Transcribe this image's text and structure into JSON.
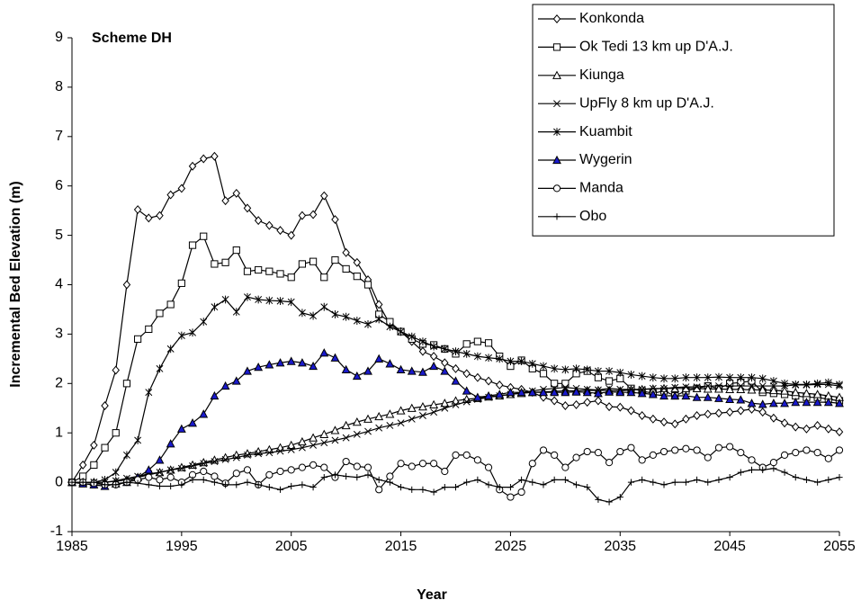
{
  "chart_data": {
    "type": "line",
    "annotation": "Scheme DH",
    "xlabel": "Year",
    "ylabel": "Incremental Bed Elevation (m)",
    "xlim": [
      1985,
      2055
    ],
    "xticks": [
      1985,
      1995,
      2005,
      2015,
      2025,
      2035,
      2045,
      2055
    ],
    "ylim": [
      -1,
      9
    ],
    "yticks": [
      -1,
      0,
      1,
      2,
      3,
      4,
      5,
      6,
      7,
      8,
      9
    ],
    "grid": false,
    "legend": "upper right",
    "x": [
      1985,
      1986,
      1987,
      1988,
      1989,
      1990,
      1991,
      1992,
      1993,
      1994,
      1995,
      1996,
      1997,
      1998,
      1999,
      2000,
      2001,
      2002,
      2003,
      2004,
      2005,
      2006,
      2007,
      2008,
      2009,
      2010,
      2011,
      2012,
      2013,
      2014,
      2015,
      2016,
      2017,
      2018,
      2019,
      2020,
      2021,
      2022,
      2023,
      2024,
      2025,
      2026,
      2027,
      2028,
      2029,
      2030,
      2031,
      2032,
      2033,
      2034,
      2035,
      2036,
      2037,
      2038,
      2039,
      2040,
      2041,
      2042,
      2043,
      2044,
      2045,
      2046,
      2047,
      2048,
      2049,
      2050,
      2051,
      2052,
      2053,
      2054,
      2055
    ],
    "series": [
      {
        "name": "Konkonda",
        "color": "#000000",
        "marker": "diamond",
        "marker_fill": "#ffffff",
        "values": [
          0,
          0.35,
          0.75,
          1.55,
          2.27,
          4.0,
          5.52,
          5.35,
          5.4,
          5.82,
          5.95,
          6.4,
          6.55,
          6.6,
          5.7,
          5.85,
          5.55,
          5.3,
          5.2,
          5.1,
          5.0,
          5.4,
          5.42,
          5.8,
          5.32,
          4.65,
          4.45,
          4.1,
          3.6,
          3.2,
          3.05,
          2.85,
          2.65,
          2.55,
          2.42,
          2.3,
          2.2,
          2.12,
          2.05,
          1.97,
          1.92,
          1.88,
          1.82,
          1.72,
          1.65,
          1.55,
          1.57,
          1.62,
          1.65,
          1.53,
          1.52,
          1.45,
          1.35,
          1.28,
          1.22,
          1.18,
          1.28,
          1.35,
          1.38,
          1.4,
          1.42,
          1.45,
          1.48,
          1.42,
          1.3,
          1.2,
          1.12,
          1.08,
          1.15,
          1.08,
          1.02
        ]
      },
      {
        "name": "Ok Tedi 13 km up D'A.J.",
        "color": "#000000",
        "marker": "square",
        "marker_fill": "#ffffff",
        "values": [
          0,
          0.12,
          0.35,
          0.7,
          1.0,
          2.0,
          2.9,
          3.1,
          3.42,
          3.6,
          4.03,
          4.8,
          4.98,
          4.42,
          4.45,
          4.7,
          4.27,
          4.3,
          4.27,
          4.22,
          4.15,
          4.42,
          4.47,
          4.15,
          4.5,
          4.32,
          4.17,
          4.0,
          3.4,
          3.25,
          3.05,
          2.9,
          2.8,
          2.78,
          2.7,
          2.6,
          2.8,
          2.85,
          2.82,
          2.55,
          2.35,
          2.47,
          2.3,
          2.2,
          2.0,
          2.0,
          2.2,
          2.25,
          2.12,
          2.05,
          2.1,
          1.9,
          1.85,
          1.8,
          1.85,
          1.75,
          1.85,
          1.9,
          1.95,
          1.9,
          2.0,
          2.02,
          2.05,
          1.82,
          1.8,
          1.78,
          1.75,
          1.72,
          1.72,
          1.68,
          1.65
        ]
      },
      {
        "name": "Kiunga",
        "color": "#000000",
        "marker": "triangle",
        "marker_fill": "#ffffff",
        "values": [
          0,
          0,
          0,
          0,
          0.02,
          0.05,
          0.1,
          0.15,
          0.2,
          0.25,
          0.3,
          0.35,
          0.4,
          0.45,
          0.5,
          0.55,
          0.58,
          0.62,
          0.66,
          0.7,
          0.75,
          0.82,
          0.9,
          0.97,
          1.05,
          1.15,
          1.22,
          1.28,
          1.33,
          1.38,
          1.45,
          1.5,
          1.53,
          1.57,
          1.6,
          1.65,
          1.68,
          1.7,
          1.73,
          1.75,
          1.78,
          1.8,
          1.82,
          1.83,
          1.84,
          1.85,
          1.85,
          1.86,
          1.86,
          1.86,
          1.85,
          1.87,
          1.88,
          1.89,
          1.9,
          1.9,
          1.9,
          1.9,
          1.89,
          1.89,
          1.88,
          1.88,
          1.87,
          1.87,
          1.86,
          1.85,
          1.82,
          1.8,
          1.78,
          1.75,
          1.72
        ]
      },
      {
        "name": "UpFly 8 km up D'A.J.",
        "color": "#000000",
        "marker": "x",
        "marker_fill": "#ffffff",
        "values": [
          0,
          0,
          0,
          0,
          0.03,
          0.08,
          0.12,
          0.17,
          0.2,
          0.25,
          0.28,
          0.33,
          0.38,
          0.42,
          0.46,
          0.5,
          0.55,
          0.58,
          0.6,
          0.63,
          0.66,
          0.7,
          0.75,
          0.8,
          0.85,
          0.9,
          0.97,
          1.03,
          1.1,
          1.15,
          1.2,
          1.28,
          1.35,
          1.42,
          1.5,
          1.57,
          1.63,
          1.68,
          1.72,
          1.75,
          1.78,
          1.82,
          1.85,
          1.88,
          1.9,
          1.92,
          1.9,
          1.88,
          1.87,
          1.9,
          1.88,
          1.88,
          1.88,
          1.9,
          1.9,
          1.92,
          1.93,
          1.93,
          1.95,
          1.95,
          1.95,
          1.95,
          1.95,
          1.95,
          1.95,
          1.95,
          1.97,
          1.97,
          1.98,
          1.98,
          1.95
        ]
      },
      {
        "name": "Kuambit",
        "color": "#000000",
        "marker": "asterisk",
        "marker_fill": "#ffffff",
        "values": [
          0,
          0,
          0,
          0.05,
          0.2,
          0.55,
          0.85,
          1.82,
          2.3,
          2.7,
          2.97,
          3.03,
          3.25,
          3.55,
          3.7,
          3.45,
          3.75,
          3.7,
          3.68,
          3.67,
          3.65,
          3.43,
          3.37,
          3.55,
          3.4,
          3.35,
          3.27,
          3.2,
          3.3,
          3.15,
          3.05,
          2.95,
          2.85,
          2.75,
          2.7,
          2.65,
          2.6,
          2.55,
          2.52,
          2.5,
          2.45,
          2.45,
          2.4,
          2.35,
          2.3,
          2.28,
          2.3,
          2.28,
          2.25,
          2.25,
          2.22,
          2.18,
          2.15,
          2.12,
          2.1,
          2.1,
          2.12,
          2.12,
          2.12,
          2.13,
          2.12,
          2.12,
          2.12,
          2.1,
          2.05,
          2.0,
          1.98,
          1.98,
          2.0,
          2.02,
          1.98
        ]
      },
      {
        "name": "Wygerin",
        "color": "#000000",
        "marker": "triangle",
        "marker_fill": "#1a1acc",
        "values": [
          0,
          -0.03,
          -0.05,
          -0.08,
          -0.03,
          0.0,
          0.1,
          0.25,
          0.45,
          0.78,
          1.08,
          1.2,
          1.38,
          1.75,
          1.95,
          2.05,
          2.25,
          2.33,
          2.38,
          2.42,
          2.45,
          2.42,
          2.35,
          2.62,
          2.52,
          2.28,
          2.15,
          2.25,
          2.5,
          2.4,
          2.28,
          2.25,
          2.23,
          2.35,
          2.25,
          2.05,
          1.85,
          1.72,
          1.75,
          1.78,
          1.82,
          1.82,
          1.82,
          1.82,
          1.82,
          1.82,
          1.83,
          1.82,
          1.8,
          1.83,
          1.82,
          1.82,
          1.8,
          1.78,
          1.75,
          1.75,
          1.75,
          1.72,
          1.72,
          1.7,
          1.68,
          1.67,
          1.6,
          1.58,
          1.6,
          1.6,
          1.62,
          1.62,
          1.62,
          1.62,
          1.6
        ]
      },
      {
        "name": "Manda",
        "color": "#000000",
        "marker": "circle",
        "marker_fill": "#ffffff",
        "values": [
          0,
          0,
          -0.02,
          -0.05,
          -0.05,
          0.0,
          0.05,
          0.1,
          0.05,
          0.1,
          0.0,
          0.15,
          0.22,
          0.12,
          -0.02,
          0.18,
          0.25,
          -0.05,
          0.15,
          0.22,
          0.25,
          0.3,
          0.35,
          0.3,
          0.1,
          0.42,
          0.32,
          0.3,
          -0.15,
          0.12,
          0.38,
          0.32,
          0.38,
          0.38,
          0.22,
          0.55,
          0.55,
          0.45,
          0.3,
          -0.15,
          -0.3,
          -0.2,
          0.38,
          0.65,
          0.55,
          0.3,
          0.5,
          0.62,
          0.6,
          0.4,
          0.62,
          0.7,
          0.45,
          0.55,
          0.62,
          0.65,
          0.68,
          0.65,
          0.5,
          0.7,
          0.72,
          0.6,
          0.45,
          0.3,
          0.4,
          0.55,
          0.6,
          0.65,
          0.6,
          0.48,
          0.65
        ]
      },
      {
        "name": "Obo",
        "color": "#000000",
        "marker": "plus",
        "marker_fill": "#ffffff",
        "values": [
          0,
          0,
          0,
          -0.05,
          -0.05,
          0.0,
          -0.02,
          -0.05,
          -0.08,
          -0.08,
          -0.05,
          0.05,
          0.05,
          0.0,
          -0.05,
          -0.05,
          0.0,
          -0.05,
          -0.1,
          -0.15,
          -0.08,
          -0.05,
          -0.1,
          0.1,
          0.15,
          0.12,
          0.1,
          0.15,
          0.05,
          0.0,
          -0.1,
          -0.15,
          -0.15,
          -0.2,
          -0.1,
          -0.1,
          0.0,
          0.05,
          -0.05,
          -0.1,
          -0.1,
          0.05,
          0.0,
          -0.05,
          0.05,
          0.05,
          -0.05,
          -0.1,
          -0.35,
          -0.4,
          -0.3,
          0.0,
          0.05,
          0.0,
          -0.05,
          0.0,
          0.0,
          0.05,
          0.0,
          0.05,
          0.1,
          0.2,
          0.25,
          0.25,
          0.28,
          0.2,
          0.1,
          0.05,
          0.0,
          0.05,
          0.1
        ]
      }
    ]
  }
}
